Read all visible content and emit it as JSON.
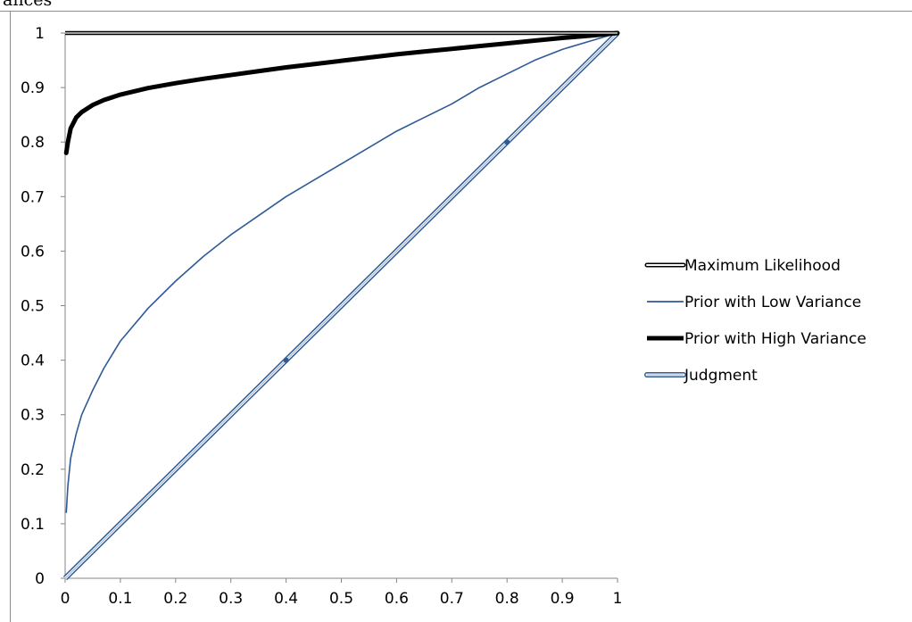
{
  "caption": "ances",
  "chart_data": {
    "type": "line",
    "title": "",
    "xlabel": "",
    "ylabel": "",
    "xlim": [
      0,
      1
    ],
    "ylim": [
      0,
      1
    ],
    "x_ticks": [
      "0",
      "0.1",
      "0.2",
      "0.3",
      "0.4",
      "0.5",
      "0.6",
      "0.7",
      "0.8",
      "0.9",
      "1"
    ],
    "y_ticks": [
      "0",
      "0.1",
      "0.2",
      "0.3",
      "0.4",
      "0.5",
      "0.6",
      "0.7",
      "0.8",
      "0.9",
      "1"
    ],
    "grid": false,
    "legend_position": "right",
    "series": [
      {
        "name": "Maximum Likelihood",
        "style": "double-black",
        "color": "#000000",
        "x": [
          0,
          1
        ],
        "y": [
          1,
          1
        ]
      },
      {
        "name": "Prior with Low Variance",
        "style": "thin",
        "color": "#2e5a96",
        "x": [
          0.002,
          0.005,
          0.01,
          0.02,
          0.03,
          0.05,
          0.07,
          0.1,
          0.15,
          0.2,
          0.25,
          0.3,
          0.35,
          0.4,
          0.45,
          0.5,
          0.55,
          0.6,
          0.65,
          0.7,
          0.75,
          0.8,
          0.85,
          0.9,
          0.95,
          1.0
        ],
        "y": [
          0.12,
          0.17,
          0.22,
          0.265,
          0.3,
          0.345,
          0.385,
          0.435,
          0.495,
          0.545,
          0.59,
          0.63,
          0.665,
          0.7,
          0.73,
          0.76,
          0.79,
          0.82,
          0.845,
          0.87,
          0.9,
          0.925,
          0.95,
          0.97,
          0.985,
          1.0
        ]
      },
      {
        "name": "Prior with High Variance",
        "style": "thick-black",
        "color": "#000000",
        "x": [
          0.002,
          0.005,
          0.01,
          0.02,
          0.03,
          0.05,
          0.07,
          0.1,
          0.15,
          0.2,
          0.25,
          0.3,
          0.35,
          0.4,
          0.45,
          0.5,
          0.55,
          0.6,
          0.65,
          0.7,
          0.75,
          0.8,
          0.85,
          0.9,
          0.95,
          1.0
        ],
        "y": [
          0.78,
          0.8,
          0.825,
          0.845,
          0.855,
          0.868,
          0.877,
          0.887,
          0.899,
          0.908,
          0.916,
          0.923,
          0.93,
          0.937,
          0.943,
          0.949,
          0.955,
          0.961,
          0.966,
          0.971,
          0.976,
          0.981,
          0.986,
          0.991,
          0.995,
          1.0
        ]
      },
      {
        "name": "Judgment",
        "style": "double-blue",
        "color": "#2e5a96",
        "x": [
          0,
          1
        ],
        "y": [
          0,
          1
        ],
        "markers_x": [
          0.4,
          0.8
        ],
        "markers_y": [
          0.4,
          0.8
        ]
      }
    ]
  }
}
